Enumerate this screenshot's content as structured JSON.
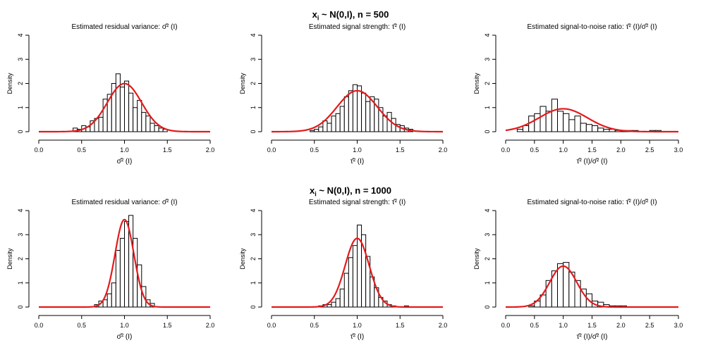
{
  "figure": {
    "rows": [
      {
        "title_left": "x",
        "title_sub": "i",
        "title_right": " ~ N(0,I), n = 500"
      },
      {
        "title_left": "x",
        "title_sub": "i",
        "title_right": " ~ N(0,I), n = 1000"
      }
    ],
    "colors": {
      "curve": "#e41a1c",
      "bar_fill": "#ffffff",
      "bar_stroke": "#000000",
      "axis": "#000000"
    },
    "ylabel": "Density"
  },
  "chart_data": [
    {
      "type": "bar",
      "title": "Estimated residual variance: σ̂² (I)",
      "xlabel": "σ̂² (I)",
      "ylabel": "Density",
      "xlim": [
        0,
        2
      ],
      "ylim": [
        0,
        4
      ],
      "xticks": [
        "0.0",
        "0.5",
        "1.0",
        "1.5",
        "2.0"
      ],
      "yticks": [
        "0",
        "1",
        "2",
        "3",
        "4"
      ],
      "bin_start": 0.4,
      "bin_width": 0.05,
      "values": [
        0.15,
        0.1,
        0.25,
        0.2,
        0.45,
        0.55,
        0.6,
        1.35,
        1.55,
        2.0,
        2.4,
        1.85,
        2.1,
        1.6,
        1.0,
        1.3,
        0.8,
        0.65,
        0.35,
        0.25,
        0.15,
        0.1
      ],
      "curve": {
        "type": "normal",
        "mean": 1.0,
        "sd": 0.2
      }
    },
    {
      "type": "bar",
      "title": "Estimated signal strength: τ̂² (I)",
      "xlabel": "τ̂² (I)",
      "ylabel": "Density",
      "xlim": [
        0,
        2
      ],
      "ylim": [
        0,
        4
      ],
      "xticks": [
        "0.0",
        "0.5",
        "1.0",
        "1.5",
        "2.0"
      ],
      "yticks": [
        "0",
        "1",
        "2",
        "3",
        "4"
      ],
      "bin_start": 0.45,
      "bin_width": 0.05,
      "values": [
        0.05,
        0.1,
        0.2,
        0.45,
        0.35,
        0.65,
        0.75,
        1.05,
        1.45,
        1.7,
        1.95,
        1.9,
        1.6,
        1.25,
        1.45,
        1.35,
        1.0,
        0.65,
        0.8,
        0.55,
        0.3,
        0.25,
        0.15,
        0.1
      ],
      "curve": {
        "type": "normal",
        "mean": 1.0,
        "sd": 0.235
      }
    },
    {
      "type": "bar",
      "title": "Estimated signal-to-noise ratio: τ̂² (I)/σ̂² (I)",
      "xlabel": "τ̂² (I)/σ̂² (I)",
      "ylabel": "Density",
      "xlim": [
        0,
        3
      ],
      "ylim": [
        0,
        4
      ],
      "xticks": [
        "0.0",
        "0.5",
        "1.0",
        "1.5",
        "2.0",
        "2.5",
        "3.0"
      ],
      "yticks": [
        "0",
        "1",
        "2",
        "3",
        "4"
      ],
      "bin_start": 0.2,
      "bin_width": 0.1,
      "values": [
        0.1,
        0.25,
        0.65,
        0.75,
        1.05,
        0.85,
        1.35,
        0.85,
        0.75,
        0.5,
        0.65,
        0.35,
        0.3,
        0.25,
        0.15,
        0.1,
        0.1,
        0.05,
        0.05,
        0.05,
        0.05,
        0.0,
        0.0,
        0.05,
        0.05
      ],
      "curve": {
        "type": "normal",
        "mean": 1.0,
        "sd": 0.42
      }
    },
    {
      "type": "bar",
      "title": "Estimated residual variance: σ̂² (I)",
      "xlabel": "σ̂² (I)",
      "ylabel": "Density",
      "xlim": [
        0,
        2
      ],
      "ylim": [
        0,
        4
      ],
      "xticks": [
        "0.0",
        "0.5",
        "1.0",
        "1.5",
        "2.0"
      ],
      "yticks": [
        "0",
        "1",
        "2",
        "3",
        "4"
      ],
      "bin_start": 0.65,
      "bin_width": 0.05,
      "values": [
        0.1,
        0.25,
        0.3,
        0.55,
        1.0,
        2.35,
        2.85,
        3.55,
        3.8,
        2.85,
        1.75,
        0.85,
        0.3,
        0.15
      ],
      "curve": {
        "type": "normal",
        "mean": 1.0,
        "sd": 0.11
      }
    },
    {
      "type": "bar",
      "title": "Estimated signal strength: τ̂² (I)",
      "xlabel": "τ̂² (I)",
      "ylabel": "Density",
      "xlim": [
        0,
        2
      ],
      "ylim": [
        0,
        4
      ],
      "xticks": [
        "0.0",
        "0.5",
        "1.0",
        "1.5",
        "2.0"
      ],
      "yticks": [
        "0",
        "1",
        "2",
        "3",
        "4"
      ],
      "bin_start": 0.55,
      "bin_width": 0.05,
      "values": [
        0.05,
        0.1,
        0.1,
        0.2,
        0.35,
        0.75,
        1.4,
        2.05,
        2.55,
        3.4,
        3.0,
        2.1,
        1.25,
        0.8,
        0.4,
        0.25,
        0.1,
        0.05,
        0.0,
        0.0,
        0.05
      ],
      "curve": {
        "type": "normal",
        "mean": 1.0,
        "sd": 0.14
      }
    },
    {
      "type": "bar",
      "title": "Estimated signal-to-noise ratio: τ̂² (I)/σ̂² (I)",
      "xlabel": "τ̂² (I)/σ̂² (I)",
      "ylabel": "Density",
      "xlim": [
        0,
        3
      ],
      "ylim": [
        0,
        4
      ],
      "xticks": [
        "0.0",
        "0.5",
        "1.0",
        "1.5",
        "2.0",
        "2.5",
        "3.0"
      ],
      "yticks": [
        "0",
        "1",
        "2",
        "3",
        "4"
      ],
      "bin_start": 0.4,
      "bin_width": 0.1,
      "values": [
        0.05,
        0.25,
        0.5,
        1.1,
        1.5,
        1.8,
        1.85,
        1.45,
        1.1,
        0.75,
        0.55,
        0.25,
        0.2,
        0.1,
        0.05,
        0.05,
        0.05,
        0.0,
        0.0,
        0.0,
        0.0
      ],
      "curve": {
        "type": "normal",
        "mean": 1.0,
        "sd": 0.235
      }
    }
  ]
}
